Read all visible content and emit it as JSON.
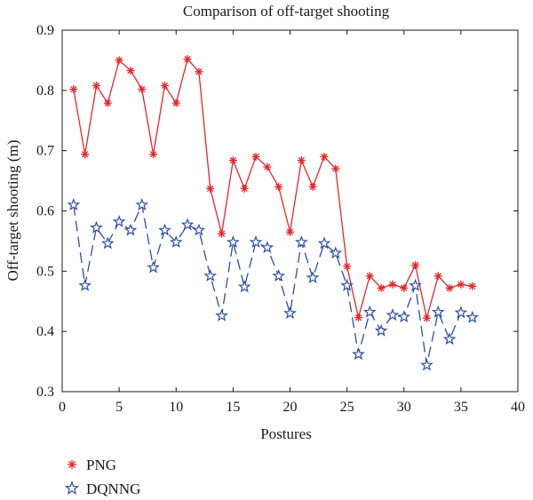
{
  "chart_data": {
    "type": "line",
    "title": "Comparison of off-target shooting",
    "xlabel": "Postures",
    "ylabel": "Off-target shooting (m)",
    "xlim": [
      0,
      40
    ],
    "ylim": [
      0.3,
      0.9
    ],
    "xticks": [
      0,
      5,
      10,
      15,
      20,
      25,
      30,
      35,
      40
    ],
    "yticks": [
      0.3,
      0.4,
      0.5,
      0.6,
      0.7,
      0.8,
      0.9
    ],
    "x": [
      1,
      2,
      3,
      4,
      5,
      6,
      7,
      8,
      9,
      10,
      11,
      12,
      13,
      14,
      15,
      16,
      17,
      18,
      19,
      20,
      21,
      22,
      23,
      24,
      25,
      26,
      27,
      28,
      29,
      30,
      31,
      32,
      33,
      34,
      35,
      36
    ],
    "series": [
      {
        "name": "PNG",
        "color": "#e8242a",
        "line_style": "solid",
        "marker": "asterisk",
        "values": [
          0.802,
          0.694,
          0.808,
          0.779,
          0.85,
          0.833,
          0.802,
          0.694,
          0.808,
          0.779,
          0.852,
          0.831,
          0.637,
          0.562,
          0.684,
          0.637,
          0.69,
          0.673,
          0.64,
          0.565,
          0.684,
          0.64,
          0.69,
          0.67,
          0.508,
          0.423,
          0.492,
          0.472,
          0.478,
          0.472,
          0.51,
          0.422,
          0.492,
          0.472,
          0.478,
          0.475
        ]
      },
      {
        "name": "DQNNG",
        "color": "#2a4fa3",
        "line_style": "dashed",
        "marker": "pentagram",
        "values": [
          0.61,
          0.476,
          0.572,
          0.546,
          0.582,
          0.568,
          0.61,
          0.506,
          0.568,
          0.548,
          0.577,
          0.568,
          0.492,
          0.426,
          0.548,
          0.474,
          0.548,
          0.539,
          0.492,
          0.43,
          0.548,
          0.489,
          0.546,
          0.53,
          0.476,
          0.362,
          0.432,
          0.401,
          0.427,
          0.424,
          0.476,
          0.344,
          0.432,
          0.387,
          0.431,
          0.423
        ]
      }
    ],
    "legend_position": "below"
  }
}
